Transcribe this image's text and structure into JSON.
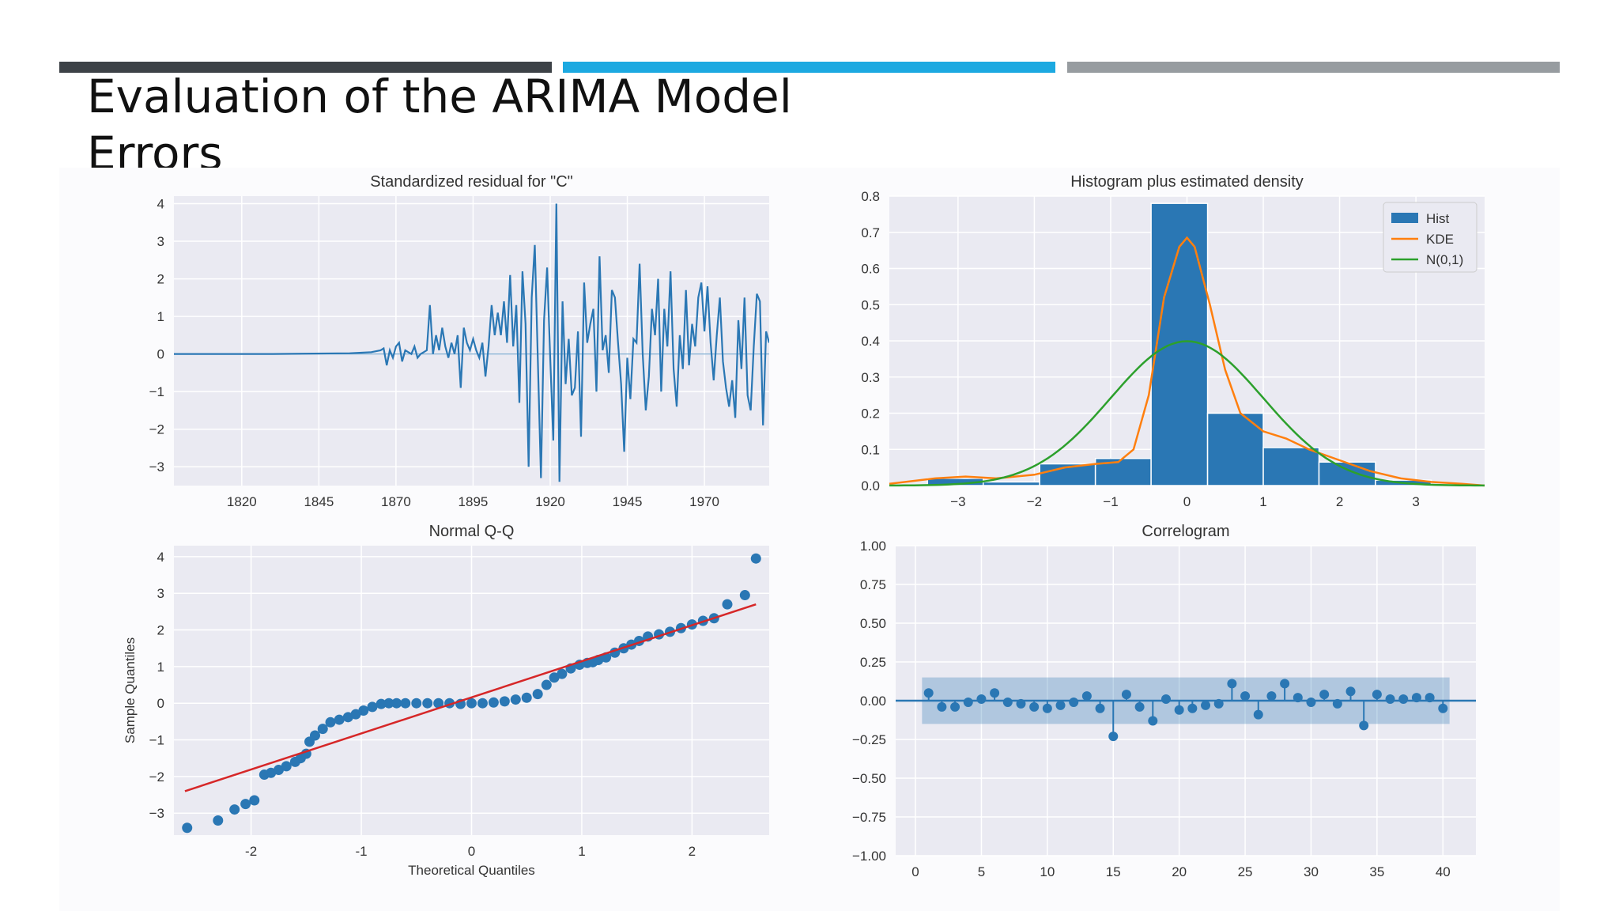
{
  "slide": {
    "title": "Evaluation of the ARIMA Model Errors",
    "accent_colors": [
      "#3d4247",
      "#1ca9e1",
      "#979ca0"
    ]
  },
  "chart_data": [
    {
      "type": "line",
      "title": "Standardized residual for \"C\"",
      "xlabel": "",
      "ylabel": "",
      "xlim": [
        1798,
        1991
      ],
      "ylim": [
        -3.5,
        4.2
      ],
      "xticks": [
        1820,
        1845,
        1870,
        1895,
        1920,
        1945,
        1970
      ],
      "yticks": [
        -3,
        -2,
        -1,
        0,
        1,
        2,
        3,
        4
      ],
      "series": [
        {
          "color": "#2a77b4",
          "x": [
            1798,
            1830,
            1855,
            1862,
            1865,
            1866,
            1867,
            1868,
            1869,
            1870,
            1871,
            1872,
            1873,
            1874,
            1875,
            1876,
            1877,
            1878,
            1879,
            1880,
            1881,
            1882,
            1883,
            1884,
            1885,
            1886,
            1887,
            1888,
            1889,
            1890,
            1891,
            1892,
            1893,
            1894,
            1895,
            1896,
            1897,
            1898,
            1899,
            1900,
            1901,
            1902,
            1903,
            1904,
            1905,
            1906,
            1907,
            1908,
            1909,
            1910,
            1911,
            1912,
            1913,
            1914,
            1915,
            1916,
            1917,
            1918,
            1919,
            1920,
            1921,
            1922,
            1923,
            1924,
            1925,
            1926,
            1927,
            1928,
            1929,
            1930,
            1931,
            1932,
            1933,
            1934,
            1935,
            1936,
            1937,
            1938,
            1939,
            1940,
            1941,
            1942,
            1943,
            1944,
            1945,
            1946,
            1947,
            1948,
            1949,
            1950,
            1951,
            1952,
            1953,
            1954,
            1955,
            1956,
            1957,
            1958,
            1959,
            1960,
            1961,
            1962,
            1963,
            1964,
            1965,
            1966,
            1967,
            1968,
            1969,
            1970,
            1971,
            1972,
            1973,
            1974,
            1975,
            1976,
            1977,
            1978,
            1979,
            1980,
            1981,
            1982,
            1983,
            1984,
            1985,
            1986,
            1987,
            1988,
            1989,
            1990,
            1991
          ],
          "y": [
            0,
            0,
            0.02,
            0.05,
            0.1,
            0.15,
            -0.3,
            0.1,
            -0.1,
            0.2,
            0.3,
            -0.2,
            0.1,
            0.05,
            0.0,
            0.2,
            -0.1,
            0.0,
            0.05,
            0.1,
            1.3,
            0.0,
            0.5,
            0.1,
            0.7,
            0.2,
            -0.1,
            0.3,
            0.0,
            0.5,
            -0.9,
            0.7,
            0.3,
            0.1,
            0.4,
            0.1,
            -0.1,
            0.3,
            -0.6,
            0.2,
            1.3,
            0.5,
            1.1,
            0.5,
            1.4,
            0.3,
            2.1,
            0.2,
            1.3,
            -1.3,
            2.2,
            0.8,
            -3.0,
            1.5,
            2.9,
            -0.2,
            -3.3,
            0.9,
            2.3,
            -0.1,
            -2.3,
            4.0,
            -3.4,
            1.4,
            -0.8,
            0.4,
            -1.1,
            -0.9,
            0.6,
            -2.2,
            1.9,
            0.3,
            0.8,
            1.2,
            -1.0,
            2.6,
            0.1,
            0.5,
            -0.5,
            1.7,
            1.5,
            0.3,
            -0.8,
            -2.6,
            -0.1,
            -1.2,
            0.4,
            0.3,
            2.4,
            0.0,
            -1.5,
            -0.6,
            1.2,
            0.5,
            2.0,
            -1.0,
            1.2,
            0.2,
            2.2,
            -0.4,
            -1.4,
            0.5,
            -0.4,
            1.7,
            -0.3,
            0.8,
            0.2,
            1.5,
            1.9,
            0.6,
            1.8,
            0.3,
            -0.7,
            0.5,
            1.5,
            -0.2,
            -0.9,
            -1.4,
            -0.7,
            -1.7,
            0.9,
            -0.4,
            1.5,
            -1.1,
            -1.5,
            0.2,
            1.6,
            1.4,
            -1.9,
            0.6,
            0.3
          ]
        }
      ]
    },
    {
      "type": "bar",
      "title": "Histogram plus estimated density",
      "xlim": [
        -3.9,
        3.9
      ],
      "ylim": [
        0,
        0.8
      ],
      "xticks": [
        -3,
        -2,
        -1,
        0,
        1,
        2,
        3
      ],
      "yticks": [
        0.0,
        0.1,
        0.2,
        0.3,
        0.4,
        0.5,
        0.6,
        0.7,
        0.8
      ],
      "legend": {
        "placement": "top-right",
        "entries": [
          "Hist",
          "KDE",
          "N(0,1)"
        ]
      },
      "hist": {
        "color": "#2a77b4",
        "bin_edges": [
          -3.4,
          -2.67,
          -1.93,
          -1.2,
          -0.47,
          0.27,
          1.0,
          1.73,
          2.47,
          3.2
        ],
        "values": [
          0.02,
          0.01,
          0.06,
          0.075,
          0.78,
          0.2,
          0.105,
          0.065,
          0.015
        ]
      },
      "kde": {
        "color": "#ff7f0e",
        "x": [
          -3.9,
          -3.3,
          -2.9,
          -2.5,
          -2.0,
          -1.6,
          -1.2,
          -0.9,
          -0.7,
          -0.5,
          -0.3,
          -0.1,
          0.0,
          0.1,
          0.3,
          0.5,
          0.7,
          1.0,
          1.3,
          1.6,
          2.0,
          2.4,
          2.8,
          3.2,
          3.6,
          3.9
        ],
        "y": [
          0.005,
          0.02,
          0.025,
          0.02,
          0.03,
          0.05,
          0.06,
          0.065,
          0.1,
          0.25,
          0.52,
          0.66,
          0.685,
          0.66,
          0.5,
          0.32,
          0.2,
          0.15,
          0.13,
          0.1,
          0.07,
          0.04,
          0.02,
          0.01,
          0.005,
          0.0
        ]
      },
      "normal": {
        "color": "#2ca02c",
        "mean": 0,
        "std": 1
      }
    },
    {
      "type": "scatter",
      "title": "Normal Q-Q",
      "xlabel": "Theoretical Quantiles",
      "ylabel": "Sample Quantiles",
      "xlim": [
        -2.7,
        2.7
      ],
      "ylim": [
        -3.6,
        4.3
      ],
      "xticks": [
        -2,
        -1,
        0,
        1,
        2
      ],
      "yticks": [
        -3,
        -2,
        -1,
        0,
        1,
        2,
        3,
        4
      ],
      "reference_line": {
        "color": "#d62728",
        "x": [
          -2.6,
          2.58
        ],
        "y": [
          -2.4,
          2.7
        ]
      },
      "points": {
        "color": "#2a77b4",
        "x": [
          -2.58,
          -2.3,
          -2.15,
          -2.05,
          -1.97,
          -1.88,
          -1.82,
          -1.75,
          -1.68,
          -1.6,
          -1.55,
          -1.5,
          -1.47,
          -1.42,
          -1.35,
          -1.28,
          -1.2,
          -1.12,
          -1.05,
          -0.98,
          -0.9,
          -0.82,
          -0.75,
          -0.68,
          -0.6,
          -0.5,
          -0.4,
          -0.3,
          -0.2,
          -0.1,
          0.0,
          0.1,
          0.2,
          0.3,
          0.4,
          0.5,
          0.6,
          0.68,
          0.75,
          0.82,
          0.9,
          0.98,
          1.05,
          1.1,
          1.15,
          1.22,
          1.3,
          1.38,
          1.45,
          1.52,
          1.6,
          1.7,
          1.8,
          1.9,
          2.0,
          2.1,
          2.2,
          2.32,
          2.48,
          2.58
        ],
        "y": [
          -3.4,
          -3.2,
          -2.9,
          -2.75,
          -2.65,
          -1.95,
          -1.9,
          -1.82,
          -1.72,
          -1.6,
          -1.5,
          -1.38,
          -1.05,
          -0.88,
          -0.7,
          -0.52,
          -0.45,
          -0.38,
          -0.3,
          -0.2,
          -0.1,
          -0.02,
          0.0,
          0.0,
          0.0,
          0.0,
          0.0,
          0.0,
          0.0,
          -0.02,
          0.0,
          0.0,
          0.02,
          0.05,
          0.1,
          0.15,
          0.25,
          0.5,
          0.7,
          0.8,
          0.95,
          1.05,
          1.1,
          1.12,
          1.18,
          1.25,
          1.38,
          1.5,
          1.6,
          1.7,
          1.82,
          1.88,
          1.95,
          2.05,
          2.15,
          2.25,
          2.32,
          2.7,
          2.95,
          3.95
        ]
      }
    },
    {
      "type": "bar",
      "title": "Correlogram",
      "xlim": [
        -1.5,
        42.5
      ],
      "ylim": [
        -1.0,
        1.0
      ],
      "xticks": [
        0,
        5,
        10,
        15,
        20,
        25,
        30,
        35,
        40
      ],
      "yticks": [
        -1.0,
        -0.75,
        -0.5,
        -0.25,
        0.0,
        0.25,
        0.5,
        0.75,
        1.0
      ],
      "ytick_labels": [
        "−1.00",
        "−0.75",
        "−0.50",
        "−0.25",
        "0.00",
        "0.25",
        "0.50",
        "0.75",
        "1.00"
      ],
      "confidence_band": {
        "color": "#2a77b4",
        "lower": -0.15,
        "upper": 0.15
      },
      "lags": [
        1,
        2,
        3,
        4,
        5,
        6,
        7,
        8,
        9,
        10,
        11,
        12,
        13,
        14,
        15,
        16,
        17,
        18,
        19,
        20,
        21,
        22,
        23,
        24,
        25,
        26,
        27,
        28,
        29,
        30,
        31,
        32,
        33,
        34,
        35,
        36,
        37,
        38,
        39,
        40
      ],
      "values": [
        0.05,
        -0.04,
        -0.04,
        -0.01,
        0.01,
        0.05,
        -0.01,
        -0.02,
        -0.04,
        -0.05,
        -0.03,
        -0.01,
        0.03,
        -0.05,
        -0.23,
        0.04,
        -0.04,
        -0.13,
        0.01,
        -0.06,
        -0.05,
        -0.03,
        -0.02,
        0.11,
        0.03,
        -0.09,
        0.03,
        0.11,
        0.02,
        -0.01,
        0.04,
        -0.02,
        0.06,
        -0.16,
        0.04,
        0.01,
        0.01,
        0.02,
        0.02,
        -0.05
      ]
    }
  ]
}
